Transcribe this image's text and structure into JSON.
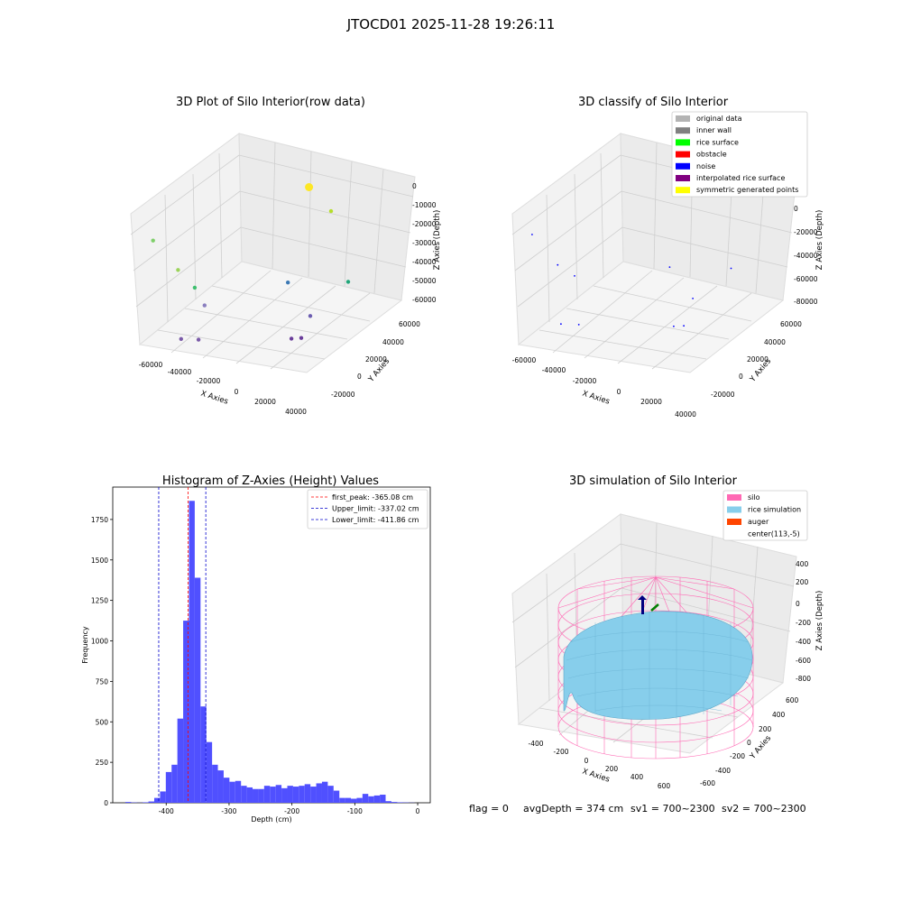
{
  "figure": {
    "suptitle": "JTOCD01 2025-11-28 19:26:11"
  },
  "chart_data": [
    {
      "id": "raw",
      "type": "scatter",
      "title": "3D Plot of Silo Interior(row data)",
      "xlabel": "X Axies",
      "ylabel": "Y Axies",
      "zlabel": "Z Axies (Depth)",
      "xticks": [
        "-60000",
        "-40000",
        "-20000",
        "0",
        "20000",
        "40000"
      ],
      "yticks": [
        "-20000",
        "0",
        "20000",
        "40000",
        "60000"
      ],
      "zticks": [
        "0",
        "-10000",
        "-20000",
        "-30000",
        "-40000",
        "-50000",
        "-60000"
      ],
      "points": [
        {
          "x": -60000,
          "y": -20000,
          "z": -10000,
          "color": "#7fcf6a"
        },
        {
          "x": -45000,
          "y": -18000,
          "z": -25000,
          "color": "#9bd35a"
        },
        {
          "x": -40000,
          "y": -10000,
          "z": -38000,
          "color": "#3fbf6f"
        },
        {
          "x": -35000,
          "y": -8000,
          "z": -48000,
          "color": "#8a7fbf"
        },
        {
          "x": -2000,
          "y": 40000,
          "z": -3000,
          "color": "#fde725"
        },
        {
          "x": 20000,
          "y": 30000,
          "z": -8000,
          "color": "#b5de2b"
        },
        {
          "x": 5000,
          "y": 12000,
          "z": -40000,
          "color": "#3b78b4"
        },
        {
          "x": 35000,
          "y": 25000,
          "z": -42000,
          "color": "#21a67a"
        },
        {
          "x": 25000,
          "y": 5000,
          "z": -52000,
          "color": "#6b5cb0"
        },
        {
          "x": -40000,
          "y": -22000,
          "z": -60000,
          "color": "#7a5aa8"
        },
        {
          "x": -30000,
          "y": -20000,
          "z": -60000,
          "color": "#7a5aa8"
        },
        {
          "x": 20000,
          "y": -5000,
          "z": -60000,
          "color": "#6a3d9a"
        },
        {
          "x": 25000,
          "y": -3000,
          "z": -60000,
          "color": "#6a3d9a"
        }
      ]
    },
    {
      "id": "classify",
      "type": "scatter",
      "title": "3D classify of Silo Interior",
      "xlabel": "X Axies",
      "ylabel": "Y Axies",
      "zlabel": "Z Axies (Depth)",
      "xticks": [
        "-60000",
        "-40000",
        "-20000",
        "0",
        "20000",
        "40000"
      ],
      "yticks": [
        "-20000",
        "0",
        "20000",
        "40000",
        "60000"
      ],
      "zticks": [
        "0",
        "-20000",
        "-40000",
        "-60000",
        "-80000"
      ],
      "legend": [
        {
          "label": "original data",
          "color": "#b3b3b3"
        },
        {
          "label": "inner wall",
          "color": "#808080"
        },
        {
          "label": "rice surface",
          "color": "#00ff00"
        },
        {
          "label": "obstacle",
          "color": "#ff0000"
        },
        {
          "label": "noise",
          "color": "#0000ff"
        },
        {
          "label": "interpolated rice surface",
          "color": "#800080"
        },
        {
          "label": "symmetric generated points",
          "color": "#ffff00"
        }
      ],
      "points": [
        {
          "x": -60000,
          "y": -20000,
          "z": -10000
        },
        {
          "x": -45000,
          "y": -18000,
          "z": -30000
        },
        {
          "x": -40000,
          "y": -10000,
          "z": -42000
        },
        {
          "x": -2000,
          "y": 40000,
          "z": -5000
        },
        {
          "x": 5000,
          "y": 12000,
          "z": -42000
        },
        {
          "x": 35000,
          "y": 25000,
          "z": -46000
        },
        {
          "x": 25000,
          "y": 5000,
          "z": -56000
        },
        {
          "x": -40000,
          "y": -22000,
          "z": -68000
        },
        {
          "x": -30000,
          "y": -20000,
          "z": -68000
        },
        {
          "x": 20000,
          "y": -5000,
          "z": -70000
        },
        {
          "x": 25000,
          "y": -3000,
          "z": -70000
        }
      ]
    },
    {
      "id": "hist",
      "type": "bar",
      "title": "Histogram of Z-Axies (Height) Values",
      "xlabel": "Depth (cm)",
      "ylabel": "Frequency",
      "xlim": [
        -485,
        20
      ],
      "ylim": [
        0,
        1950
      ],
      "xticks": [
        -400,
        -300,
        -200,
        -100,
        0
      ],
      "yticks": [
        0,
        250,
        500,
        750,
        1000,
        1250,
        1500,
        1750
      ],
      "bin_width": 9.2,
      "bar_color": "#5050ff",
      "bins_start": [
        -465,
        -455.8,
        -446.6,
        -437.4,
        -428.2,
        -419,
        -409.8,
        -400.6,
        -391.4,
        -382.2,
        -373,
        -363.8,
        -354.6,
        -345.4,
        -336.2,
        -327,
        -317.8,
        -308.6,
        -299.4,
        -290.2,
        -281,
        -271.8,
        -262.6,
        -253.4,
        -244.2,
        -235,
        -225.8,
        -216.6,
        -207.4,
        -198.2,
        -189,
        -179.8,
        -170.6,
        -161.4,
        -152.2,
        -143,
        -133.8,
        -124.6,
        -115.4,
        -106.2,
        -97,
        -87.8,
        -78.6,
        -69.4,
        -60.2,
        -51,
        -41.8,
        -32.6,
        -23.4,
        -14.2
      ],
      "values": [
        5,
        2,
        1,
        3,
        8,
        30,
        70,
        190,
        235,
        520,
        1125,
        1865,
        1390,
        595,
        375,
        235,
        200,
        155,
        130,
        135,
        105,
        95,
        85,
        85,
        105,
        100,
        110,
        90,
        105,
        100,
        105,
        115,
        100,
        120,
        130,
        105,
        75,
        30,
        30,
        25,
        30,
        55,
        40,
        45,
        50,
        10,
        5,
        3,
        2,
        1
      ],
      "lines": [
        {
          "label": "first_peak: -365.08 cm",
          "x": -365.08,
          "color": "#ff0000"
        },
        {
          "label": "Upper_limit: -337.02 cm",
          "x": -337.02,
          "color": "#0000cc"
        },
        {
          "label": "Lower_limit: -411.86 cm",
          "x": -411.86,
          "color": "#0000cc"
        }
      ]
    },
    {
      "id": "sim",
      "type": "surface",
      "title": "3D simulation of Silo Interior",
      "xlabel": "X Axies",
      "ylabel": "Y Axies",
      "zlabel": "Z Axies (Depth)",
      "xticks": [
        "-400",
        "-200",
        "0",
        "200",
        "400",
        "600"
      ],
      "yticks": [
        "-600",
        "-400",
        "-200",
        "0",
        "200",
        "400",
        "600"
      ],
      "zticks": [
        "400",
        "200",
        "0",
        "-200",
        "-400",
        "-600",
        "-800"
      ],
      "legend": [
        {
          "label": "silo",
          "color": "#ff69b4"
        },
        {
          "label": "rice simulation",
          "color": "#87ceeb"
        },
        {
          "label": "auger",
          "color": "#ff4500"
        },
        {
          "label": "center(113,-5)",
          "color": "none"
        }
      ]
    }
  ],
  "status": {
    "flag": "flag = 0",
    "avg": "avgDepth = 374 cm",
    "sv1": "sv1 = 700~2300",
    "sv2": "sv2 = 700~2300"
  }
}
